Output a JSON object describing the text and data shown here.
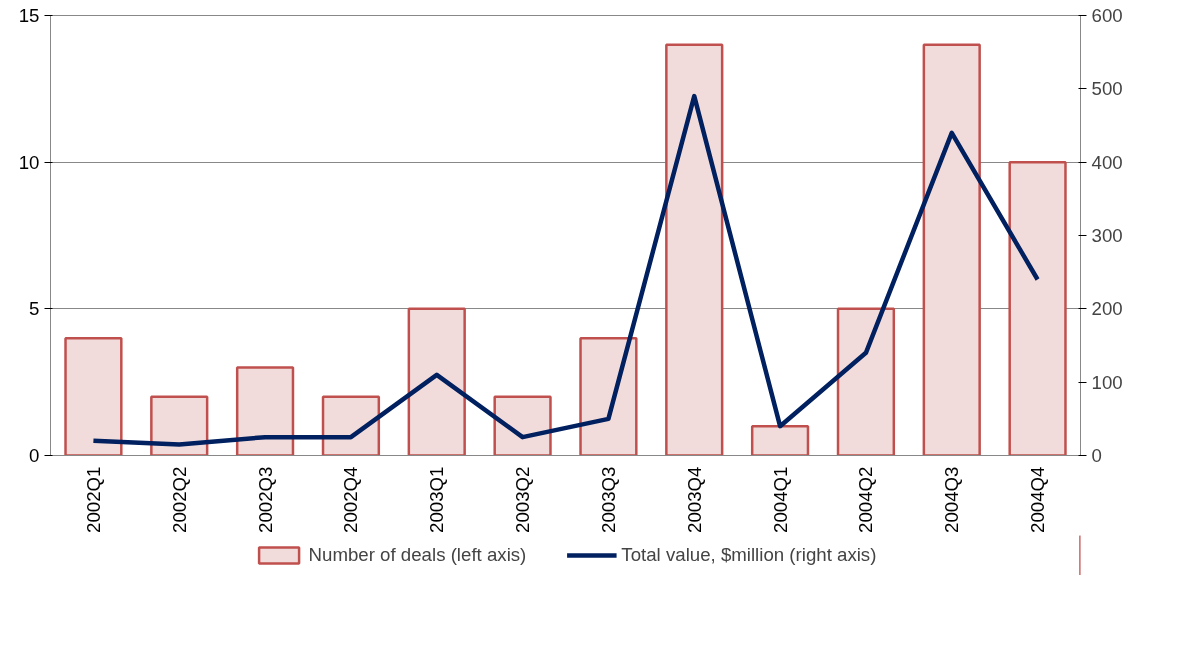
{
  "chart_data": {
    "type": "bar",
    "categories": [
      "2002Q1",
      "2002Q2",
      "2002Q3",
      "2002Q4",
      "2003Q1",
      "2003Q2",
      "2003Q3",
      "2003Q4",
      "2004Q1",
      "2004Q2",
      "2004Q3",
      "2004Q4"
    ],
    "series": [
      {
        "name": "Number of deals (left axis)",
        "color": "#f2dcdb",
        "values": [
          4,
          2,
          3,
          2,
          5,
          2,
          4,
          14,
          1,
          5,
          14,
          10
        ]
      },
      {
        "name": "Total value, $million (right axis)",
        "type": "line",
        "axis": "y2",
        "color": "#002060",
        "values": [
          20,
          15,
          25,
          25,
          110,
          25,
          50,
          490,
          40,
          140,
          440,
          240
        ]
      }
    ],
    "ylim": [
      0,
      15
    ],
    "yticks": [
      0,
      5,
      10,
      15
    ],
    "y2lim": [
      0,
      600
    ],
    "y2ticks": [
      0,
      100,
      200,
      300,
      400,
      500,
      600
    ],
    "grid": "y",
    "legend": "bottom",
    "marker": "none",
    "line_style": "solid"
  }
}
